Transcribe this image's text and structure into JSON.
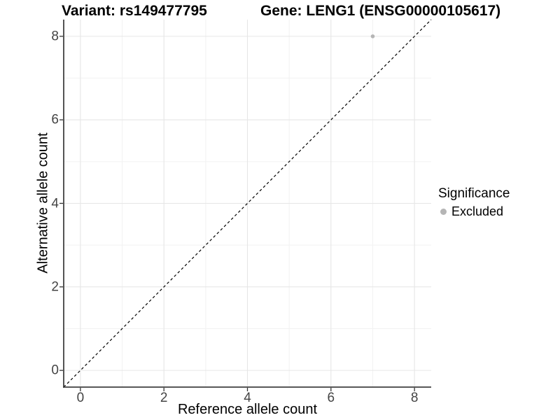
{
  "titles": {
    "variant": "Variant: rs149477795",
    "gene": "Gene: LENG1 (ENSG00000105617)"
  },
  "legend": {
    "title": "Significance",
    "items": [
      {
        "label": "Excluded",
        "color": "#b5b5b5"
      }
    ]
  },
  "colors": {
    "background": "#ffffff",
    "grid_major": "#e6e6e6",
    "grid_minor": "#f2f2f2",
    "axis_line": "#404040",
    "tick_mark": "#333333",
    "tick_label": "#444444",
    "reference_line": "#000000",
    "point_excluded": "#b5b5b5"
  },
  "chart_data": {
    "type": "scatter",
    "title": "Variant: rs149477795    Gene: LENG1 (ENSG00000105617)",
    "xlabel": "Reference allele count",
    "ylabel": "Alternative allele count",
    "xlim": [
      -0.4,
      8.4
    ],
    "ylim": [
      -0.4,
      8.4
    ],
    "xticks": [
      0,
      2,
      4,
      6,
      8
    ],
    "yticks": [
      0,
      2,
      4,
      6,
      8
    ],
    "xminor": [
      1,
      3,
      5,
      7
    ],
    "yminor": [
      1,
      3,
      5,
      7
    ],
    "grid": "major-and-minor",
    "legend_position": "right",
    "legend_title": "Significance",
    "series": [
      {
        "name": "Excluded",
        "color": "#b5b5b5",
        "points": [
          {
            "x": 7,
            "y": 8
          }
        ]
      }
    ],
    "reference_line": {
      "type": "identity",
      "slope": 1,
      "intercept": 0,
      "linetype": "dashed",
      "color": "#000000"
    }
  }
}
